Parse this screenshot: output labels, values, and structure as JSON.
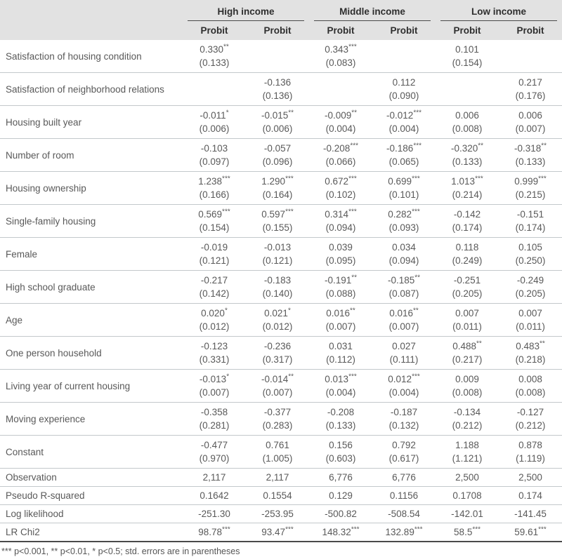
{
  "colors": {
    "header_bg": "#e2e2e2",
    "row_border": "#c3c8cb",
    "strong_rule": "#4a4a4a",
    "text": "#595959"
  },
  "table": {
    "groups": [
      {
        "label": "High income"
      },
      {
        "label": "Middle income"
      },
      {
        "label": "Low income"
      }
    ],
    "col_headers": [
      "Probit",
      "Probit",
      "Probit",
      "Probit",
      "Probit",
      "Probit"
    ],
    "rows": [
      {
        "label": "Satisfaction of housing condition",
        "cells": [
          {
            "est": "0.330**",
            "se": "(0.133)"
          },
          null,
          {
            "est": "0.343***",
            "se": "(0.083)"
          },
          null,
          {
            "est": "0.101",
            "se": "(0.154)"
          },
          null
        ]
      },
      {
        "label": "Satisfaction of neighborhood relations",
        "cells": [
          null,
          {
            "est": "-0.136",
            "se": "(0.136)"
          },
          null,
          {
            "est": "0.112",
            "se": "(0.090)"
          },
          null,
          {
            "est": "0.217",
            "se": "(0.176)"
          }
        ]
      },
      {
        "label": "Housing built year",
        "cells": [
          {
            "est": "-0.011*",
            "se": "(0.006)"
          },
          {
            "est": "-0.015**",
            "se": "(0.006)"
          },
          {
            "est": "-0.009**",
            "se": "(0.004)"
          },
          {
            "est": "-0.012***",
            "se": "(0.004)"
          },
          {
            "est": "0.006",
            "se": "(0.008)"
          },
          {
            "est": "0.006",
            "se": "(0.007)"
          }
        ]
      },
      {
        "label": "Number of room",
        "cells": [
          {
            "est": "-0.103",
            "se": "(0.097)"
          },
          {
            "est": "-0.057",
            "se": "(0.096)"
          },
          {
            "est": "-0.208***",
            "se": "(0.066)"
          },
          {
            "est": "-0.186***",
            "se": "(0.065)"
          },
          {
            "est": "-0.320**",
            "se": "(0.133)"
          },
          {
            "est": "-0.318**",
            "se": "(0.133)"
          }
        ]
      },
      {
        "label": "Housing ownership",
        "cells": [
          {
            "est": "1.238***",
            "se": "(0.166)"
          },
          {
            "est": "1.290***",
            "se": "(0.164)"
          },
          {
            "est": "0.672***",
            "se": "(0.102)"
          },
          {
            "est": "0.699***",
            "se": "(0.101)"
          },
          {
            "est": "1.013***",
            "se": "(0.214)"
          },
          {
            "est": "0.999***",
            "se": "(0.215)"
          }
        ]
      },
      {
        "label": "Single-family housing",
        "cells": [
          {
            "est": "0.569***",
            "se": "(0.154)"
          },
          {
            "est": "0.597***",
            "se": "(0.155)"
          },
          {
            "est": "0.314***",
            "se": "(0.094)"
          },
          {
            "est": "0.282***",
            "se": "(0.093)"
          },
          {
            "est": "-0.142",
            "se": "(0.174)"
          },
          {
            "est": "-0.151",
            "se": "(0.174)"
          }
        ]
      },
      {
        "label": "Female",
        "cells": [
          {
            "est": "-0.019",
            "se": "(0.121)"
          },
          {
            "est": "-0.013",
            "se": "(0.121)"
          },
          {
            "est": "0.039",
            "se": "(0.095)"
          },
          {
            "est": "0.034",
            "se": "(0.094)"
          },
          {
            "est": "0.118",
            "se": "(0.249)"
          },
          {
            "est": "0.105",
            "se": "(0.250)"
          }
        ]
      },
      {
        "label": "High school graduate",
        "cells": [
          {
            "est": "-0.217",
            "se": "(0.142)"
          },
          {
            "est": "-0.183",
            "se": "(0.140)"
          },
          {
            "est": "-0.191**",
            "se": "(0.088)"
          },
          {
            "est": "-0.185**",
            "se": "(0.087)"
          },
          {
            "est": "-0.251",
            "se": "(0.205)"
          },
          {
            "est": "-0.249",
            "se": "(0.205)"
          }
        ]
      },
      {
        "label": "Age",
        "cells": [
          {
            "est": "0.020*",
            "se": "(0.012)"
          },
          {
            "est": "0.021*",
            "se": "(0.012)"
          },
          {
            "est": "0.016**",
            "se": "(0.007)"
          },
          {
            "est": "0.016**",
            "se": "(0.007)"
          },
          {
            "est": "0.007",
            "se": "(0.011)"
          },
          {
            "est": "0.007",
            "se": "(0.011)"
          }
        ]
      },
      {
        "label": "One person household",
        "cells": [
          {
            "est": "-0.123",
            "se": "(0.331)"
          },
          {
            "est": "-0.236",
            "se": "(0.317)"
          },
          {
            "est": "0.031",
            "se": "(0.112)"
          },
          {
            "est": "0.027",
            "se": "(0.111)"
          },
          {
            "est": "0.488**",
            "se": "(0.217)"
          },
          {
            "est": "0.483**",
            "se": "(0.218)"
          }
        ]
      },
      {
        "label": "Living year of current housing",
        "cells": [
          {
            "est": "-0.013*",
            "se": "(0.007)"
          },
          {
            "est": "-0.014**",
            "se": "(0.007)"
          },
          {
            "est": "0.013***",
            "se": "(0.004)"
          },
          {
            "est": "0.012***",
            "se": "(0.004)"
          },
          {
            "est": "0.009",
            "se": "(0.008)"
          },
          {
            "est": "0.008",
            "se": "(0.008)"
          }
        ]
      },
      {
        "label": "Moving experience",
        "cells": [
          {
            "est": "-0.358",
            "se": "(0.281)"
          },
          {
            "est": "-0.377",
            "se": "(0.283)"
          },
          {
            "est": "-0.208",
            "se": "(0.133)"
          },
          {
            "est": "-0.187",
            "se": "(0.132)"
          },
          {
            "est": "-0.134",
            "se": "(0.212)"
          },
          {
            "est": "-0.127",
            "se": "(0.212)"
          }
        ]
      },
      {
        "label": "Constant",
        "cells": [
          {
            "est": "-0.477",
            "se": "(0.970)"
          },
          {
            "est": "0.761",
            "se": "(1.005)"
          },
          {
            "est": "0.156",
            "se": "(0.603)"
          },
          {
            "est": "0.792",
            "se": "(0.617)"
          },
          {
            "est": "1.188",
            "se": "(1.121)"
          },
          {
            "est": "0.878",
            "se": "(1.119)"
          }
        ]
      }
    ],
    "summary_rows": [
      {
        "label": "Observation",
        "values": [
          "2,117",
          "2,117",
          "6,776",
          "6,776",
          "2,500",
          "2,500"
        ]
      },
      {
        "label": "Pseudo R-squared",
        "values": [
          "0.1642",
          "0.1554",
          "0.129",
          "0.1156",
          "0.1708",
          "0.174"
        ]
      },
      {
        "label": "Log likelihood",
        "values": [
          "-251.30",
          "-253.95",
          "-500.82",
          "-508.54",
          "-142.01",
          "-141.45"
        ]
      },
      {
        "label": "LR Chi2",
        "values": [
          "98.78***",
          "93.47***",
          "148.32***",
          "132.89***",
          "58.5***",
          "59.61***"
        ]
      }
    ],
    "footnote": "*** p<0.001, ** p<0.01, * p<0.5; std. errors are in parentheses"
  }
}
